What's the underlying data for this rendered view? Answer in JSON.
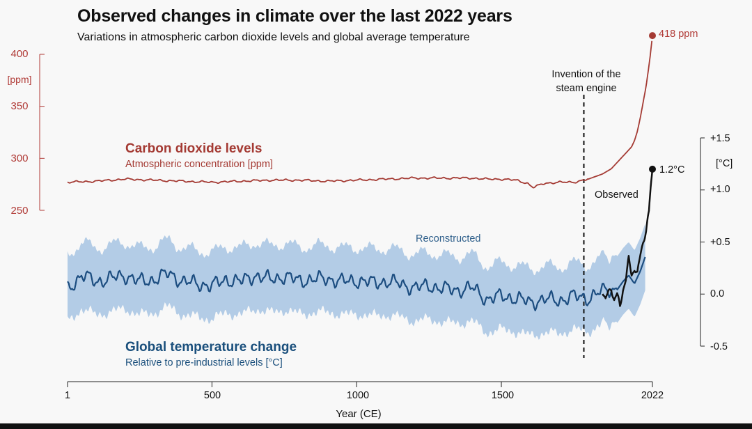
{
  "chart_data": {
    "type": "line",
    "title": "Observed changes in climate over the last 2022 years",
    "subtitle": "Variations in atmospheric carbon dioxide levels and global average temperature",
    "xlabel": "Year (CE)",
    "x_ticks": [
      "1",
      "500",
      "1000",
      "1500",
      "2022"
    ],
    "x_tick_values": [
      1,
      500,
      1000,
      1500,
      2022
    ],
    "xlim": [
      1,
      2022
    ],
    "co2_axis": {
      "unit": "[ppm]",
      "ticks": [
        "400",
        "350",
        "300",
        "250"
      ],
      "tick_values": [
        400,
        350,
        300,
        250
      ],
      "ylim": [
        250,
        400
      ],
      "color": "#b03a36"
    },
    "temp_axis": {
      "unit": "[°C]",
      "ticks": [
        "+1.5",
        "+1.0",
        "+0.5",
        "0.0",
        "-0.5"
      ],
      "tick_values": [
        1.5,
        1.0,
        0.5,
        0.0,
        -0.5
      ],
      "ylim": [
        -0.5,
        1.5
      ]
    },
    "series": [
      {
        "name": "Carbon dioxide levels",
        "description": "Atmospheric concentration [ppm]",
        "axis": "co2",
        "color": "#a43a33",
        "x": [
          1,
          100,
          200,
          300,
          400,
          500,
          600,
          700,
          800,
          900,
          1000,
          1100,
          1200,
          1300,
          1400,
          1450,
          1500,
          1550,
          1590,
          1610,
          1650,
          1700,
          1750,
          1800,
          1850,
          1880,
          1900,
          1920,
          1940,
          1950,
          1960,
          1970,
          1980,
          1990,
          2000,
          2010,
          2015,
          2022
        ],
        "values": [
          277,
          278,
          280,
          279,
          278,
          277,
          278,
          279,
          279,
          278,
          279,
          280,
          281,
          281,
          281,
          280,
          280,
          279,
          276,
          272,
          276,
          277,
          277,
          280,
          285,
          290,
          296,
          302,
          308,
          311,
          317,
          326,
          339,
          354,
          369,
          389,
          400,
          418
        ]
      },
      {
        "name": "Global temperature change",
        "description": "Relative to pre-industrial levels [°C]",
        "label": "Reconstructed",
        "axis": "temp",
        "color": "#1c4d80",
        "uncertainty_band_color": "#b3cce6",
        "uncertainty_halfwidth": 0.32,
        "x": [
          1,
          50,
          100,
          150,
          200,
          250,
          300,
          350,
          400,
          450,
          500,
          550,
          600,
          650,
          700,
          750,
          800,
          850,
          900,
          950,
          1000,
          1050,
          1100,
          1150,
          1200,
          1250,
          1300,
          1350,
          1400,
          1450,
          1500,
          1550,
          1600,
          1650,
          1700,
          1750,
          1800,
          1850,
          1880,
          1900,
          1920,
          1940,
          1960,
          1980,
          2000
        ],
        "values": [
          0.05,
          0.18,
          0.12,
          0.15,
          0.18,
          0.12,
          0.14,
          0.2,
          0.12,
          0.1,
          0.08,
          0.14,
          0.12,
          0.18,
          0.14,
          0.17,
          0.13,
          0.14,
          0.15,
          0.12,
          0.13,
          0.11,
          0.12,
          0.1,
          0.06,
          0.08,
          0.05,
          0.04,
          0.06,
          -0.05,
          -0.02,
          -0.04,
          -0.08,
          -0.05,
          -0.06,
          -0.02,
          -0.04,
          0.03,
          0.05,
          0.04,
          0.12,
          0.18,
          0.1,
          0.22,
          0.38
        ]
      },
      {
        "name": "Observed",
        "axis": "temp",
        "color": "#111111",
        "x": [
          1850,
          1860,
          1870,
          1880,
          1890,
          1900,
          1910,
          1920,
          1930,
          1940,
          1950,
          1960,
          1970,
          1980,
          1990,
          2000,
          2010,
          2015,
          2022
        ],
        "values": [
          0.05,
          -0.05,
          0.02,
          0.05,
          -0.07,
          -0.02,
          -0.13,
          0.05,
          0.15,
          0.35,
          0.2,
          0.25,
          0.18,
          0.35,
          0.5,
          0.6,
          0.8,
          1.0,
          1.2
        ]
      }
    ],
    "annotations": {
      "steam_engine": {
        "text": "Invention of the steam engine",
        "year": 1785
      },
      "co2_end": "418 ppm",
      "temp_end": "1.2°C"
    }
  }
}
